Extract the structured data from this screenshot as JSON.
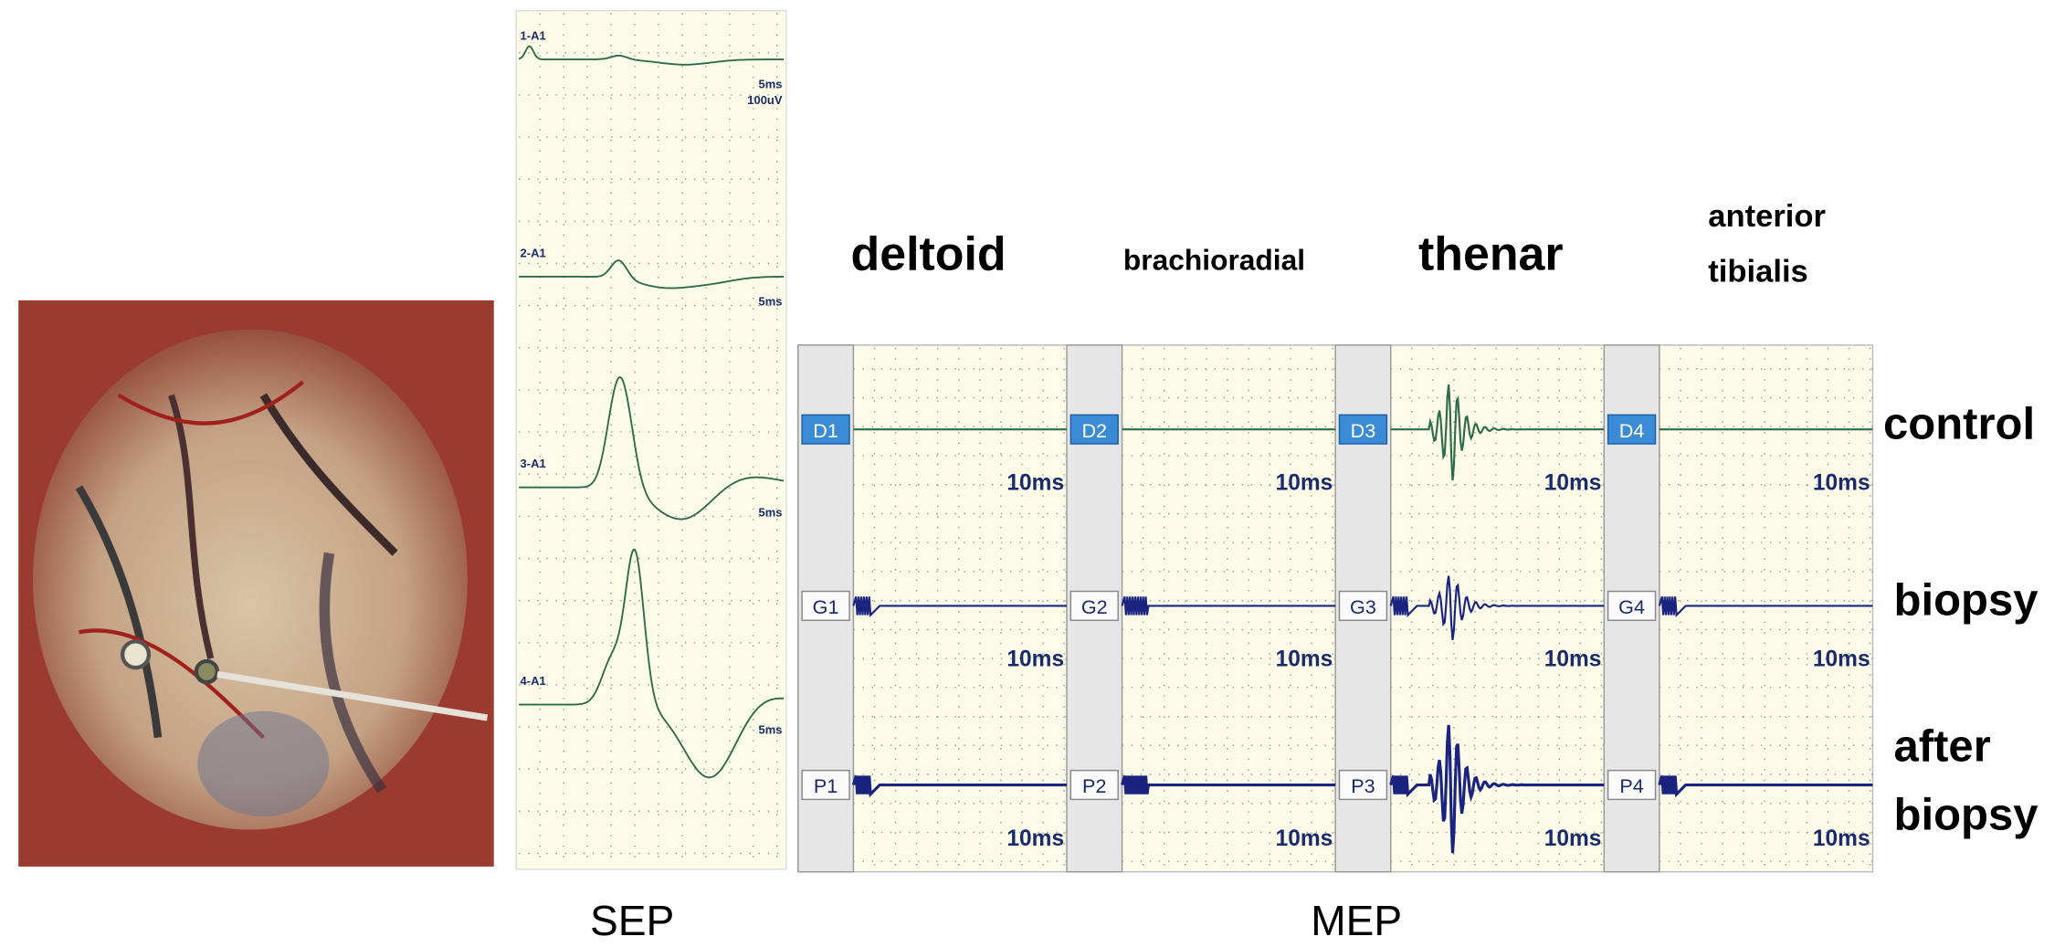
{
  "sep": {
    "title": "SEP",
    "traces": [
      {
        "label": "1-A1",
        "scale": "5ms",
        "amplitude": "100uV"
      },
      {
        "label": "2-A1",
        "scale": "5ms"
      },
      {
        "label": "3-A1",
        "scale": "5ms"
      },
      {
        "label": "4-A1",
        "scale": "5ms"
      }
    ]
  },
  "mep": {
    "title": "MEP",
    "muscles": [
      {
        "lines": [
          "deltoid"
        ]
      },
      {
        "lines": [
          "brachioradial"
        ]
      },
      {
        "lines": [
          "thenar"
        ]
      },
      {
        "lines": [
          "anterior",
          "tibialis"
        ]
      }
    ],
    "rows": [
      {
        "lines": [
          "control"
        ],
        "channels": [
          "D1",
          "D2",
          "D3",
          "D4"
        ],
        "scales": [
          "10ms",
          "10ms",
          "10ms",
          "10ms"
        ]
      },
      {
        "lines": [
          "biopsy"
        ],
        "channels": [
          "G1",
          "G2",
          "G3",
          "G4"
        ],
        "scales": [
          "10ms",
          "10ms",
          "10ms",
          "10ms"
        ]
      },
      {
        "lines": [
          "after",
          "biopsy"
        ],
        "channels": [
          "P1",
          "P2",
          "P3",
          "P4"
        ],
        "scales": [
          "10ms",
          "10ms",
          "10ms",
          "10ms"
        ]
      }
    ]
  }
}
